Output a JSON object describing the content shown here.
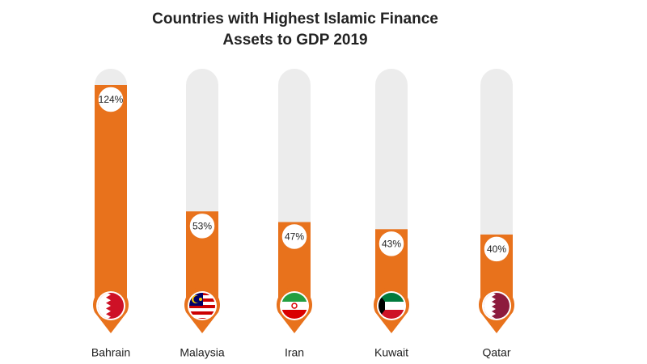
{
  "chart_data": {
    "type": "bar",
    "title": [
      "Countries with Highest Islamic Finance",
      "Assets to GDP 2019"
    ],
    "categories": [
      "Bahrain",
      "Malaysia",
      "Iran",
      "Kuwait",
      "Qatar"
    ],
    "values": [
      124,
      53,
      47,
      43,
      40
    ],
    "value_labels": [
      "124%",
      "53%",
      "47%",
      "43%",
      "40%"
    ],
    "color": "#e8721c"
  }
}
